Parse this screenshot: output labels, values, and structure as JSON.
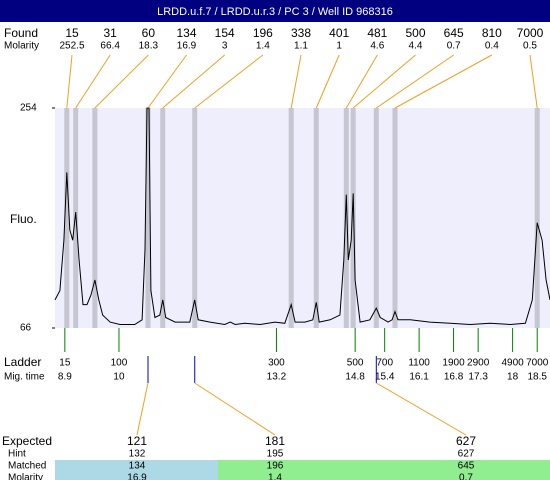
{
  "header": {
    "title": "LRDD.u.f.7 / LRDD.u.r.3 / PC 3 / Well ID 968316"
  },
  "chart_data": {
    "type": "line",
    "y_label": "Fluo.",
    "xlim": [
      8.7,
      18.76
    ],
    "ylim": [
      66,
      254
    ],
    "yticks": [
      254,
      66
    ],
    "x": [
      8.7,
      8.8,
      8.88,
      8.94,
      9.0,
      9.06,
      9.12,
      9.19,
      9.27,
      9.35,
      9.43,
      9.51,
      9.59,
      9.67,
      9.82,
      10.02,
      10.32,
      10.47,
      10.53,
      10.57,
      10.61,
      10.65,
      10.73,
      10.83,
      10.89,
      10.95,
      11.14,
      11.44,
      11.54,
      11.61,
      11.85,
      12.15,
      12.26,
      12.36,
      12.56,
      12.87,
      13.17,
      13.37,
      13.5,
      13.58,
      13.78,
      13.94,
      14.01,
      14.07,
      14.29,
      14.49,
      14.57,
      14.62,
      14.66,
      14.72,
      14.76,
      14.8,
      14.9,
      15.1,
      15.23,
      15.31,
      15.47,
      15.55,
      15.61,
      15.67,
      15.92,
      16.32,
      16.73,
      17.14,
      17.54,
      17.95,
      18.26,
      18.4,
      18.5,
      18.6,
      18.68,
      18.76
    ],
    "series": [
      {
        "color": "#000000",
        "values": [
          90,
          98,
          141,
          199,
          150,
          141,
          165,
          124,
          86,
          86,
          94,
          107,
          90,
          77,
          71,
          69,
          69,
          73,
          133,
          254,
          254,
          98,
          75,
          77,
          90,
          75,
          71,
          71,
          90,
          73,
          71,
          69,
          71,
          69,
          70,
          69,
          71,
          70,
          86,
          71,
          71,
          73,
          88,
          71,
          73,
          77,
          124,
          180,
          124,
          141,
          181,
          107,
          71,
          73,
          83,
          75,
          71,
          73,
          80,
          73,
          73,
          71,
          70,
          69,
          70,
          69,
          70,
          90,
          156,
          141,
          107,
          90
        ]
      }
    ],
    "found": {
      "label": "Found",
      "molarity_label": "Molarity",
      "peaks": [
        {
          "size": 15,
          "molarity": 252.5,
          "time": 8.94
        },
        {
          "size": 31,
          "molarity": 66.4,
          "time": 9.12
        },
        {
          "size": 60,
          "molarity": 18.3,
          "time": 9.51
        },
        {
          "size": 134,
          "molarity": 16.9,
          "time": 10.59
        },
        {
          "size": 154,
          "molarity": 3,
          "time": 10.89
        },
        {
          "size": 196,
          "molarity": 1.4,
          "time": 11.54
        },
        {
          "size": 338,
          "molarity": 1.1,
          "time": 13.5
        },
        {
          "size": 401,
          "molarity": 1,
          "time": 14.01
        },
        {
          "size": 481,
          "molarity": 4.6,
          "time": 14.62
        },
        {
          "size": 500,
          "molarity": 4.4,
          "time": 14.76
        },
        {
          "size": 645,
          "molarity": 0.7,
          "time": 15.23
        },
        {
          "size": 810,
          "molarity": 0.4,
          "time": 15.61
        },
        {
          "size": 7000,
          "molarity": 0.5,
          "time": 18.5
        }
      ]
    },
    "ladder": {
      "label": "Ladder",
      "time_label": "Mig. time",
      "sizes": [
        15,
        100,
        300,
        500,
        700,
        1100,
        1900,
        2900,
        4900,
        7000
      ],
      "times": [
        8.9,
        10,
        13.2,
        14.8,
        15.4,
        16.1,
        16.8,
        17.3,
        18,
        18.5
      ]
    }
  },
  "expected_table": {
    "labels": [
      "Expected",
      "Hint",
      "Matched",
      "Molarity"
    ],
    "columns": [
      {
        "expected": 121,
        "hint": 132,
        "matched": 134,
        "molarity": 16.9,
        "color": "#add8e6"
      },
      {
        "expected": 181,
        "hint": 195,
        "matched": 196,
        "molarity": 1.4,
        "color": "#90ee90"
      },
      {
        "expected": 627,
        "hint": 627,
        "matched": 645,
        "molarity": 0.7,
        "color": "#90ee90"
      }
    ]
  }
}
